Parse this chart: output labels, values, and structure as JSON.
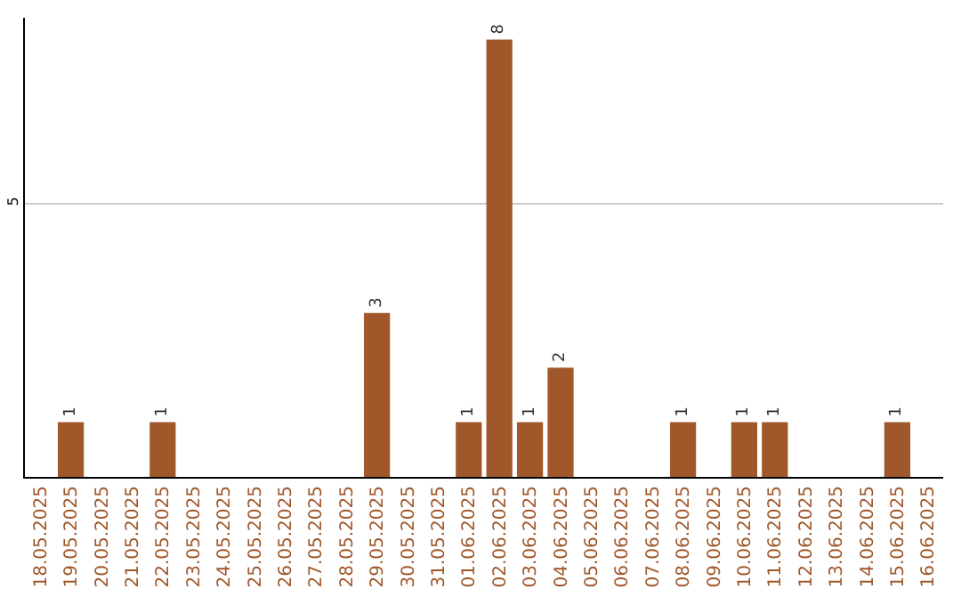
{
  "chart_data": {
    "type": "bar",
    "categories": [
      "18.05.2025",
      "19.05.2025",
      "20.05.2025",
      "21.05.2025",
      "22.05.2025",
      "23.05.2025",
      "24.05.2025",
      "25.05.2025",
      "26.05.2025",
      "27.05.2025",
      "28.05.2025",
      "29.05.2025",
      "30.05.2025",
      "31.05.2025",
      "01.06.2025",
      "02.06.2025",
      "03.06.2025",
      "04.06.2025",
      "05.06.2025",
      "06.06.2025",
      "07.06.2025",
      "08.06.2025",
      "09.06.2025",
      "10.06.2025",
      "11.06.2025",
      "12.06.2025",
      "13.06.2025",
      "14.06.2025",
      "15.06.2025",
      "16.06.2025"
    ],
    "values": [
      0,
      1,
      0,
      0,
      1,
      0,
      0,
      0,
      0,
      0,
      0,
      3,
      0,
      0,
      1,
      8,
      1,
      2,
      0,
      0,
      0,
      1,
      0,
      1,
      1,
      0,
      0,
      0,
      1,
      0
    ],
    "value_labels": [
      null,
      "1",
      null,
      null,
      "1",
      null,
      null,
      null,
      null,
      null,
      null,
      "3",
      null,
      null,
      "1",
      "8",
      "1",
      "2",
      null,
      null,
      null,
      "1",
      null,
      "1",
      "1",
      null,
      null,
      null,
      "1",
      null
    ],
    "color": "#a0582b",
    "ylim": [
      0,
      8.4
    ],
    "yticks": [
      5
    ],
    "grid": "y",
    "legend": false
  }
}
